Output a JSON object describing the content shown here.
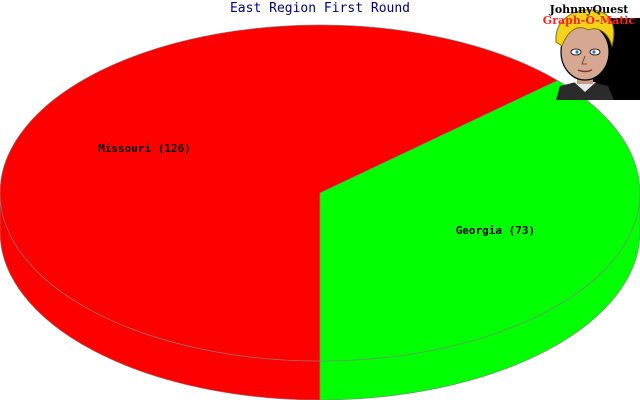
{
  "chart_data": {
    "type": "pie",
    "title": "East Region First Round",
    "slices": [
      {
        "label": "Missouri (126)",
        "value": 126,
        "color": "#ff0000",
        "side_color": "#ff0000"
      },
      {
        "label": "Georgia (73)",
        "value": 73,
        "color": "#00ff00",
        "side_color": "#00ff00"
      }
    ],
    "style": "3d-tilted"
  },
  "logo": {
    "line1": "JohnnyQuest",
    "line2": "Graph-O-Matic"
  }
}
